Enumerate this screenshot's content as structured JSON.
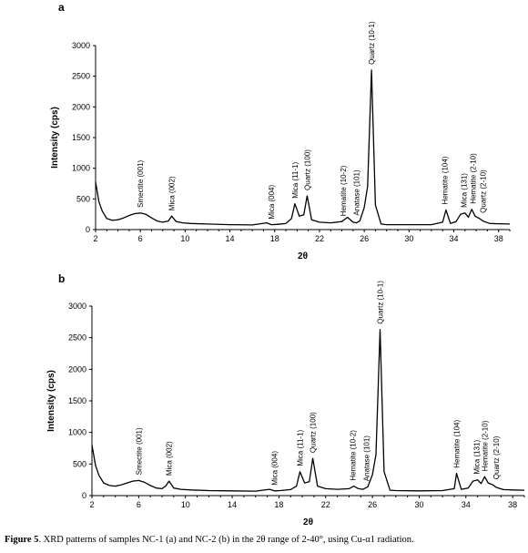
{
  "caption": {
    "prefix": "Figure 5",
    "text": ". XRD patterns of samples NC-1 (a) and NC-2 (b) in the 2θ range of 2-40°, using Cu-α1 radiation."
  },
  "chart_data": [
    {
      "type": "line",
      "title": "",
      "panel_label": "a",
      "xlabel": "2θ",
      "ylabel": "Intensity (cps)",
      "xlim": [
        2,
        39
      ],
      "ylim": [
        0,
        3000
      ],
      "xticks": [
        2,
        6,
        10,
        14,
        18,
        22,
        26,
        30,
        34,
        38
      ],
      "yticks": [
        0,
        500,
        1000,
        1500,
        2000,
        2500,
        3000
      ],
      "grid": false,
      "series": [
        {
          "x": [
            2,
            2.3,
            2.6,
            3,
            3.5,
            4,
            4.5,
            5,
            5.5,
            6,
            6.5,
            7,
            7.5,
            8,
            8.5,
            8.8,
            9.2,
            9.8,
            10.5,
            12,
            14,
            16,
            17.3,
            17.7,
            18.2,
            19,
            19.5,
            19.8,
            20.2,
            20.6,
            20.9,
            21.3,
            22,
            23,
            24,
            24.5,
            25,
            25.3,
            25.6,
            26,
            26.3,
            26.65,
            27,
            27.5,
            28,
            30,
            32,
            33,
            33.3,
            33.7,
            34.2,
            34.6,
            35,
            35.3,
            35.6,
            35.9,
            36.3,
            36.6,
            37.2,
            38,
            39
          ],
          "y": [
            780,
            450,
            300,
            180,
            150,
            160,
            190,
            230,
            260,
            270,
            250,
            190,
            140,
            120,
            140,
            220,
            130,
            110,
            100,
            90,
            80,
            75,
            110,
            80,
            85,
            100,
            180,
            420,
            220,
            240,
            550,
            160,
            120,
            110,
            130,
            200,
            120,
            110,
            140,
            360,
            700,
            2600,
            400,
            90,
            80,
            80,
            80,
            120,
            320,
            100,
            130,
            250,
            270,
            200,
            330,
            220,
            180,
            140,
            100,
            95,
            90
          ]
        }
      ],
      "annotations": [
        {
          "text": "Smectite (001)",
          "x": 6
        },
        {
          "text": "Mica (002)",
          "x": 8.8
        },
        {
          "text": "Mica (004)",
          "x": 17.7
        },
        {
          "text": "Mica (11-1)",
          "x": 19.8
        },
        {
          "text": "Quartz (100)",
          "x": 20.9
        },
        {
          "text": "Hematite (10-2)",
          "x": 24.1
        },
        {
          "text": "Anatase (101)",
          "x": 25.3
        },
        {
          "text": "Quartz (10-1)",
          "x": 26.65
        },
        {
          "text": "Hematite (104)",
          "x": 33.2
        },
        {
          "text": "Mica (131)",
          "x": 34.9
        },
        {
          "text": "Hematite (2-10)",
          "x": 35.7
        },
        {
          "text": "Quartz (2-10)",
          "x": 36.6
        }
      ]
    },
    {
      "type": "line",
      "title": "",
      "panel_label": "b",
      "xlabel": "2θ",
      "ylabel": "Intensity (cps)",
      "xlim": [
        2,
        39
      ],
      "ylim": [
        0,
        3000
      ],
      "xticks": [
        2,
        6,
        10,
        14,
        18,
        22,
        26,
        30,
        34,
        38
      ],
      "yticks": [
        0,
        500,
        1000,
        1500,
        2000,
        2500,
        3000
      ],
      "grid": false,
      "series": [
        {
          "x": [
            2,
            2.3,
            2.6,
            3,
            3.5,
            4,
            4.5,
            5,
            5.5,
            6,
            6.5,
            7,
            7.5,
            8,
            8.3,
            8.6,
            9,
            9.6,
            10.5,
            12,
            14,
            16,
            17.2,
            17.6,
            18.1,
            19,
            19.5,
            19.8,
            20.2,
            20.6,
            20.9,
            21.3,
            22,
            23,
            24,
            24.4,
            24.8,
            25.2,
            25.6,
            26,
            26.3,
            26.65,
            27,
            27.5,
            28,
            30,
            32,
            33,
            33.2,
            33.6,
            34.2,
            34.6,
            35,
            35.3,
            35.6,
            35.9,
            36.3,
            36.6,
            37.2,
            38,
            39
          ],
          "y": [
            800,
            480,
            320,
            200,
            160,
            150,
            170,
            200,
            230,
            240,
            210,
            160,
            120,
            110,
            150,
            230,
            120,
            100,
            90,
            80,
            75,
            70,
            100,
            75,
            80,
            95,
            150,
            380,
            200,
            220,
            590,
            150,
            110,
            100,
            110,
            150,
            110,
            100,
            140,
            330,
            650,
            2630,
            380,
            85,
            80,
            75,
            80,
            110,
            350,
            100,
            120,
            230,
            250,
            190,
            300,
            200,
            170,
            130,
            95,
            90,
            85
          ]
        }
      ],
      "annotations": [
        {
          "text": "Smectite (001)",
          "x": 6
        },
        {
          "text": "Mica (002)",
          "x": 8.6
        },
        {
          "text": "Mica (004)",
          "x": 17.6
        },
        {
          "text": "Mica (11-1)",
          "x": 19.8
        },
        {
          "text": "Quartz (100)",
          "x": 20.9
        },
        {
          "text": "Hematite (10-2)",
          "x": 24.3
        },
        {
          "text": "Anatase (101)",
          "x": 25.5
        },
        {
          "text": "Quartz (10-1)",
          "x": 26.65
        },
        {
          "text": "Hematite (104)",
          "x": 33.2
        },
        {
          "text": "Mica (131)",
          "x": 34.9
        },
        {
          "text": "Hematite (2-10)",
          "x": 35.6
        },
        {
          "text": "Quartz (2-10)",
          "x": 36.6
        }
      ]
    }
  ]
}
